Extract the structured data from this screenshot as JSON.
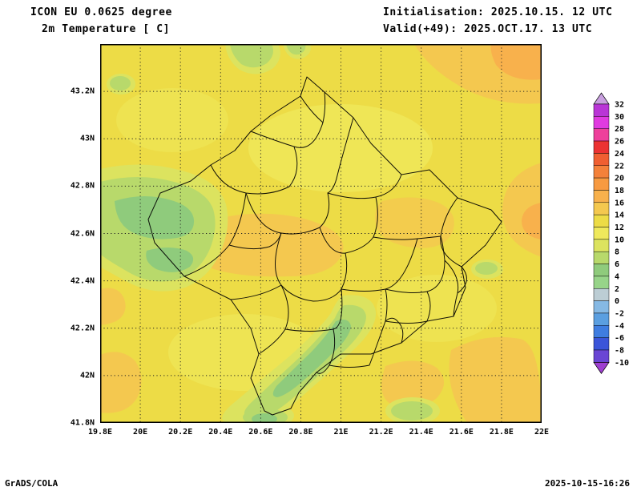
{
  "header": {
    "model_line": "ICON EU 0.0625 degree",
    "variable_line": "2m Temperature [ C]",
    "init_line": "Initialisation: 2025.10.15. 12 UTC",
    "valid_line": "Valid(+49): 2025.OCT.17. 13 UTC"
  },
  "footer": {
    "credit": "GrADS/COLA",
    "timestamp": "2025-10-15-16:26"
  },
  "chart_data": {
    "type": "heatmap",
    "title": "2m Temperature [ C]",
    "model": "ICON EU 0.0625 degree",
    "init_time": "2025.10.15. 12 UTC",
    "valid_time": "2025.OCT.17. 13 UTC",
    "forecast_hour": "+49",
    "grid": "dotted",
    "x_axis": {
      "label": "longitude",
      "range_deg_east": [
        19.8,
        22.0
      ],
      "ticks": [
        "19.8E",
        "20E",
        "20.2E",
        "20.4E",
        "20.6E",
        "20.8E",
        "21E",
        "21.2E",
        "21.4E",
        "21.6E",
        "21.8E",
        "22E"
      ]
    },
    "y_axis": {
      "label": "latitude",
      "range_deg_north": [
        41.8,
        43.4
      ],
      "ticks": [
        "43.2N",
        "43N",
        "42.8N",
        "42.6N",
        "42.4N",
        "42.2N",
        "42N",
        "41.8N"
      ]
    },
    "colorbar": {
      "units": "C",
      "position": "right",
      "labels": [
        "32",
        "30",
        "28",
        "26",
        "24",
        "22",
        "20",
        "18",
        "16",
        "14",
        "12",
        "10",
        "8",
        "6",
        "4",
        "2",
        "0",
        "-2",
        "-4",
        "-6",
        "-8",
        "-10"
      ],
      "colors_top_to_bottom": [
        "#c9a0e0",
        "#b935d6",
        "#e03ae0",
        "#ee3f9b",
        "#ec3232",
        "#f05f31",
        "#f4813a",
        "#f79a41",
        "#f8b14c",
        "#f4c84f",
        "#eddc46",
        "#efe95c",
        "#dce35f",
        "#b8d96b",
        "#8fcb7c",
        "#97d489",
        "#bccdd4",
        "#86b9e4",
        "#5b9fe0",
        "#3f7de0",
        "#3b55d9",
        "#6a46d4",
        "#9e3fd0"
      ]
    },
    "field_overview": {
      "dominant_temp_band_c": "10-14 (yellow) over most of the domain",
      "warmer_areas_c": "14-18 (orange): northeast corner, eastern edge, central-west plain, bottom-right and south-central valleys, small bottom-left patch",
      "cooler_areas_c": "4-8 (green): northwest mountain ridge band, diagonal Sar-mountains band in the south, small spots along top and bottom edges and east-center",
      "overlay": "national and municipal administrative boundaries drawn in thin black lines"
    }
  }
}
